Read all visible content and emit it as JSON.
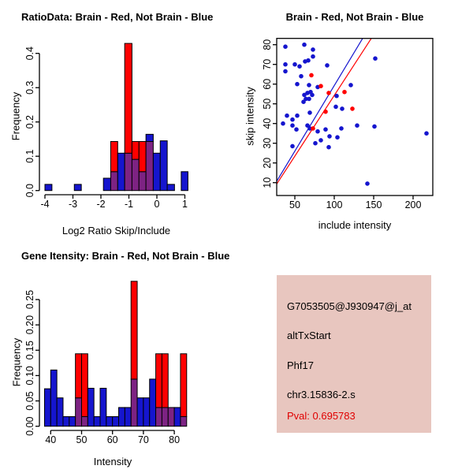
{
  "colors": {
    "brain_red": "#FF0000",
    "not_brain_blue": "#1515CE",
    "overlap_purple": "#7D2383",
    "info_bg": "#E8C6BF",
    "pval_red": "#E00000",
    "axis_black": "#000000"
  },
  "chart_data": [
    {
      "id": "ratio_histogram",
      "type": "bar",
      "title": "RatioData: Brain - Red, Not Brain - Blue",
      "xlabel": "Log2 Ratio Skip/Include",
      "ylabel": "Frequency",
      "xlim": [
        -4.2,
        1.3
      ],
      "ylim": [
        0,
        0.43
      ],
      "x_ticks": {
        "values": [
          -4,
          -3,
          -2,
          -1,
          0,
          1
        ],
        "labels": [
          "-4",
          "-3",
          "-2",
          "-1",
          "0",
          "1"
        ]
      },
      "y_ticks": {
        "values": [
          0,
          0.1,
          0.2,
          0.3,
          0.4
        ],
        "labels": [
          "0.0",
          "0.1",
          "0.2",
          "0.3",
          "0.4"
        ]
      },
      "series_legend": [
        {
          "name": "Brain",
          "color": "red"
        },
        {
          "name": "Not Brain",
          "color": "blue"
        }
      ],
      "bins": [
        [
          -4.0,
          -3.75,
          0.018,
          0
        ],
        [
          -2.95,
          -2.7,
          0.018,
          0
        ],
        [
          -1.91,
          -1.65,
          0.036,
          0
        ],
        [
          -1.65,
          -1.4,
          0.055,
          0.143
        ],
        [
          -1.4,
          -1.15,
          0.109,
          0
        ],
        [
          -1.15,
          -0.89,
          0.109,
          0.429
        ],
        [
          -0.89,
          -0.64,
          0.091,
          0.143
        ],
        [
          -0.64,
          -0.39,
          0.055,
          0.143
        ],
        [
          -0.39,
          -0.13,
          0.164,
          0.143
        ],
        [
          -0.13,
          0.12,
          0.109,
          0
        ],
        [
          0.12,
          0.37,
          0.145,
          0
        ],
        [
          0.37,
          0.63,
          0.018,
          0
        ],
        [
          0.87,
          1.11,
          0.055,
          0
        ]
      ],
      "bins_note": "each bin is [x0, x1, blue_frequency, red_frequency]"
    },
    {
      "id": "intensity_scatter",
      "type": "scatter",
      "title": "Brain - Red, Not Brain - Blue",
      "xlabel": "include intensity",
      "ylabel": "skip intensity",
      "xlim": [
        27,
        225
      ],
      "ylim": [
        3.5,
        83.2
      ],
      "x_ticks": {
        "values": [
          50,
          100,
          150,
          200
        ],
        "labels": [
          "50",
          "100",
          "150",
          "200"
        ]
      },
      "y_ticks": {
        "values": [
          10,
          20,
          30,
          40,
          50,
          60,
          70,
          80
        ],
        "labels": [
          "10",
          "20",
          "30",
          "40",
          "50",
          "60",
          "70",
          "80"
        ]
      },
      "points_blue": [
        [
          38,
          79
        ],
        [
          62,
          80
        ],
        [
          73,
          77.5
        ],
        [
          73,
          74
        ],
        [
          63,
          71.5
        ],
        [
          67,
          72
        ],
        [
          38,
          70
        ],
        [
          50,
          70
        ],
        [
          56,
          69
        ],
        [
          91,
          69.5
        ],
        [
          38,
          66.5
        ],
        [
          58,
          64
        ],
        [
          152,
          73
        ],
        [
          53,
          60
        ],
        [
          68,
          59.5
        ],
        [
          79,
          58.5
        ],
        [
          121,
          59.5
        ],
        [
          66,
          55.5
        ],
        [
          70,
          56
        ],
        [
          72,
          54.5
        ],
        [
          62,
          54.5
        ],
        [
          64,
          52.5
        ],
        [
          68,
          52.5
        ],
        [
          61,
          51
        ],
        [
          103,
          54
        ],
        [
          102,
          48.5
        ],
        [
          110,
          47.5
        ],
        [
          40,
          44
        ],
        [
          53,
          44
        ],
        [
          69,
          45.5
        ],
        [
          47,
          42
        ],
        [
          35,
          40
        ],
        [
          47,
          39
        ],
        [
          52,
          37
        ],
        [
          66,
          39
        ],
        [
          69,
          37.5
        ],
        [
          79,
          36
        ],
        [
          89,
          37
        ],
        [
          109,
          37.5
        ],
        [
          94,
          33.5
        ],
        [
          104,
          33
        ],
        [
          76,
          30
        ],
        [
          83,
          31.5
        ],
        [
          47,
          28.5
        ],
        [
          93,
          28
        ],
        [
          129,
          39
        ],
        [
          151,
          38.5
        ],
        [
          217,
          35
        ],
        [
          142,
          9.5
        ]
      ],
      "points_red": [
        [
          71,
          64.5
        ],
        [
          83,
          59
        ],
        [
          93,
          55.5
        ],
        [
          113,
          56
        ],
        [
          89,
          46
        ],
        [
          123,
          47.5
        ],
        [
          73,
          37.5
        ]
      ],
      "lines": [
        {
          "color": "blue",
          "from": [
            27,
            10.7
          ],
          "to": [
            136,
            83.2
          ]
        },
        {
          "color": "red",
          "from": [
            27,
            9.3
          ],
          "to": [
            147,
            83.2
          ]
        }
      ]
    },
    {
      "id": "gene_intensity_histogram",
      "type": "bar",
      "title": "Gene Itensity: Brain - Red, Not Brain - Blue",
      "xlabel": "Intensity",
      "ylabel": "Frequency",
      "xlim": [
        36.5,
        86
      ],
      "ylim": [
        0,
        0.29
      ],
      "x_ticks": {
        "values": [
          40,
          50,
          60,
          70,
          80
        ],
        "labels": [
          "40",
          "50",
          "60",
          "70",
          "80"
        ]
      },
      "y_ticks": {
        "values": [
          0,
          0.05,
          0.1,
          0.15,
          0.2,
          0.25
        ],
        "labels": [
          "0.00",
          "0.05",
          "0.10",
          "0.15",
          "0.20",
          "0.25"
        ]
      },
      "series_legend": [
        {
          "name": "Brain",
          "color": "red"
        },
        {
          "name": "Not Brain",
          "color": "blue"
        }
      ],
      "bins": [
        [
          38,
          40,
          0.074,
          0
        ],
        [
          40,
          42,
          0.111,
          0
        ],
        [
          42,
          44,
          0.056,
          0
        ],
        [
          44,
          46,
          0.019,
          0
        ],
        [
          46,
          48,
          0.019,
          0
        ],
        [
          48,
          50,
          0.056,
          0.143
        ],
        [
          50,
          52,
          0.019,
          0.143
        ],
        [
          52,
          54,
          0.075,
          0
        ],
        [
          54,
          56,
          0.019,
          0
        ],
        [
          56,
          58,
          0.075,
          0
        ],
        [
          58,
          60,
          0.019,
          0
        ],
        [
          60,
          62,
          0.019,
          0
        ],
        [
          62,
          64,
          0.037,
          0
        ],
        [
          64,
          66,
          0.037,
          0
        ],
        [
          66,
          68,
          0.093,
          0.286
        ],
        [
          68,
          70,
          0.056,
          0
        ],
        [
          70,
          72,
          0.056,
          0
        ],
        [
          72,
          74,
          0.093,
          0
        ],
        [
          74,
          76,
          0.037,
          0.143
        ],
        [
          76,
          78,
          0.037,
          0.143
        ],
        [
          78,
          80,
          0.037,
          0.037
        ],
        [
          80,
          82,
          0.037,
          0
        ],
        [
          82,
          84,
          0.019,
          0.143
        ]
      ],
      "bins_note": "each bin is [x0, x1, blue_frequency, red_frequency]"
    }
  ],
  "info_panel": {
    "probe_id": "G7053505@J930947@j_at",
    "event_type": "altTxStart",
    "gene": "Phf17",
    "region": "chr3.15836-2.s",
    "pval": "Pval: 0.695783"
  }
}
